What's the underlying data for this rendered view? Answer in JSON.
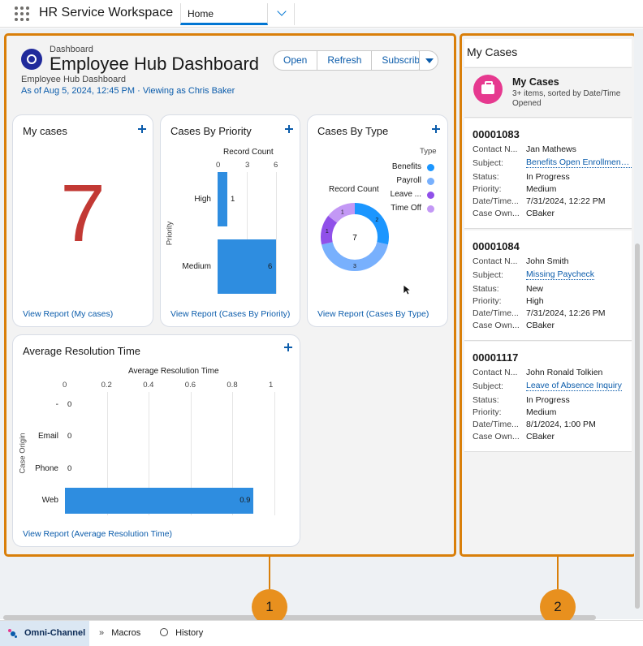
{
  "topbar": {
    "app_name": "HR Service Workspace",
    "tab_label": "Home"
  },
  "dashboard": {
    "eyebrow": "Dashboard",
    "title": "Employee Hub Dashboard",
    "subtitle": "Employee Hub Dashboard",
    "as_of": "As of Aug 5, 2024, 12:45 PM · Viewing as Chris Baker",
    "buttons": {
      "open": "Open",
      "refresh": "Refresh",
      "subscribe": "Subscribe"
    }
  },
  "widgets": {
    "my_cases": {
      "title": "My cases",
      "value": "7",
      "link": "View Report (My cases)"
    },
    "by_priority": {
      "title": "Cases By Priority",
      "link": "View Report (Cases By Priority)"
    },
    "by_type": {
      "title": "Cases By Type",
      "link": "View Report (Cases By Type)"
    },
    "resolution": {
      "title": "Average Resolution Time",
      "link": "View Report (Average Resolution Time)"
    }
  },
  "chart_data": [
    {
      "type": "bar",
      "orientation": "horizontal",
      "title": "",
      "xlabel": "Record Count",
      "ylabel": "Priority",
      "categories": [
        "High",
        "Medium"
      ],
      "values": [
        1,
        6
      ],
      "xticks": [
        "0",
        "3",
        "6"
      ],
      "xlim": [
        0,
        6
      ]
    },
    {
      "type": "pie",
      "subtype": "donut",
      "title": "Record Count",
      "center_label": "7",
      "legend_title": "Type",
      "legend_position": "right",
      "categories": [
        "Benefits",
        "Payroll",
        "Leave ...",
        "Time Off"
      ],
      "values": [
        2,
        3,
        1,
        1
      ],
      "colors": [
        "#1b96ff",
        "#78b0fd",
        "#9050e9",
        "#c398f5"
      ]
    },
    {
      "type": "bar",
      "orientation": "horizontal",
      "title": "",
      "xlabel": "Average Resolution Time",
      "ylabel": "Case Origin",
      "categories": [
        "-",
        "Email",
        "Phone",
        "Web"
      ],
      "values": [
        0,
        0,
        0,
        0.9
      ],
      "xticks": [
        "0",
        "0.2",
        "0.4",
        "0.6",
        "0.8",
        "1"
      ],
      "xlim": [
        0,
        1
      ]
    }
  ],
  "cases_panel": {
    "header": "My Cases",
    "card_title": "My Cases",
    "card_sub": "3+ items, sorted by Date/Time Opened",
    "labels": {
      "contact": "Contact N...",
      "subject": "Subject:",
      "status": "Status:",
      "priority": "Priority:",
      "datetime": "Date/Time...",
      "owner": "Case Own..."
    },
    "cases": [
      {
        "number": "00001083",
        "contact": "Jan Mathews",
        "subject": "Benefits Open Enrollment ...",
        "status": "In Progress",
        "priority": "Medium",
        "datetime": "7/31/2024, 12:22 PM",
        "owner": "CBaker"
      },
      {
        "number": "00001084",
        "contact": "John Smith",
        "subject": "Missing Paycheck",
        "status": "New",
        "priority": "High",
        "datetime": "7/31/2024, 12:26 PM",
        "owner": "CBaker"
      },
      {
        "number": "00001117",
        "contact": "John Ronald Tolkien",
        "subject": "Leave of Absence Inquiry",
        "status": "In Progress",
        "priority": "Medium",
        "datetime": "8/1/2024, 1:00 PM",
        "owner": "CBaker"
      }
    ]
  },
  "callouts": {
    "one": "1",
    "two": "2"
  },
  "utility_bar": {
    "omni": "Omni-Channel",
    "macros": "Macros",
    "history": "History"
  },
  "colors": {
    "accent": "#0176d3",
    "highlight": "#d97f0a",
    "big_number": "#c23934",
    "bar": "#2e8de0"
  }
}
